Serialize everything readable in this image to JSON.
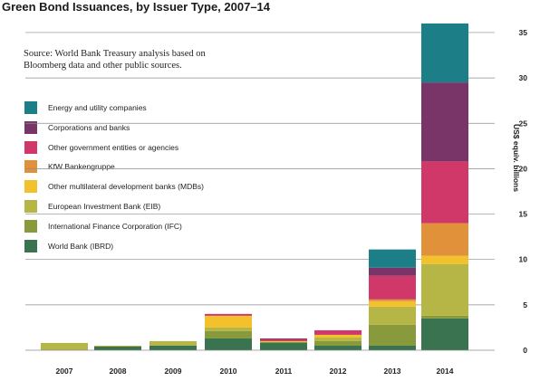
{
  "chart_data": {
    "type": "bar",
    "stacked": true,
    "title": "Green Bond Issuances, by Issuer Type, 2007–14",
    "subtitle": "Source: World Bank Treasury analysis based on Bloomberg data and other public sources.",
    "xlabel": "",
    "ylabel": "US$ equiv. billions",
    "ylim": [
      0,
      36
    ],
    "yticks": [
      0,
      5,
      10,
      15,
      20,
      25,
      30,
      35
    ],
    "grid": true,
    "legend_position": "left",
    "categories": [
      "2007",
      "2008",
      "2009",
      "2010",
      "2011",
      "2012",
      "2013",
      "2014"
    ],
    "series": [
      {
        "name": "World Bank (IBRD)",
        "color": "#3a7350",
        "values": [
          0.0,
          0.4,
          0.5,
          1.3,
          0.8,
          0.5,
          0.5,
          3.5
        ]
      },
      {
        "name": "International Finance Corporation (IFC)",
        "color": "#889a3c",
        "values": [
          0.0,
          0.0,
          0.0,
          0.8,
          0.1,
          0.5,
          2.3,
          0.3
        ]
      },
      {
        "name": "European Investment Bank (EIB)",
        "color": "#b6b647",
        "values": [
          0.8,
          0.1,
          0.5,
          0.4,
          0.0,
          0.4,
          2.0,
          5.7
        ]
      },
      {
        "name": "Other multilateral development banks (MDBs)",
        "color": "#f2c12b",
        "values": [
          0.0,
          0.0,
          0.0,
          1.3,
          0.1,
          0.3,
          0.6,
          0.9
        ]
      },
      {
        "name": "KfW Bankengruppe",
        "color": "#e0913a",
        "values": [
          0.0,
          0.0,
          0.0,
          0.0,
          0.0,
          0.0,
          0.2,
          3.6
        ]
      },
      {
        "name": "Other government entities or agencies",
        "color": "#cf3868",
        "values": [
          0.0,
          0.0,
          0.0,
          0.2,
          0.2,
          0.5,
          2.6,
          6.8
        ]
      },
      {
        "name": "Corporations and banks",
        "color": "#7a3568",
        "values": [
          0.0,
          0.0,
          0.0,
          0.0,
          0.1,
          0.0,
          0.9,
          8.7
        ]
      },
      {
        "name": "Energy and utility companies",
        "color": "#1c7f88",
        "values": [
          0.0,
          0.0,
          0.0,
          0.0,
          0.0,
          0.0,
          2.0,
          6.5
        ]
      }
    ]
  }
}
